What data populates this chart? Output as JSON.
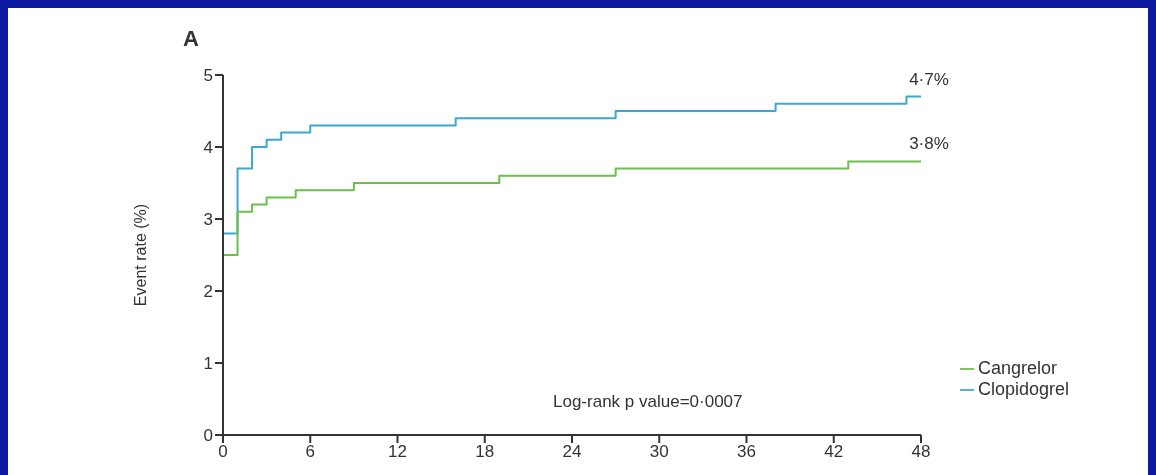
{
  "chart_data": {
    "type": "step",
    "title": "A",
    "ylabel": "Event rate (%)",
    "series": [
      {
        "name": "Clopidogrel",
        "color": "#3aa8d0",
        "x": [
          0,
          0,
          1,
          2,
          3,
          4,
          6,
          16,
          27,
          38,
          47,
          48
        ],
        "values": [
          0,
          2.8,
          3.7,
          4.0,
          4.1,
          4.2,
          4.3,
          4.4,
          4.5,
          4.6,
          4.7,
          4.7
        ]
      },
      {
        "name": "Cangrelor",
        "color": "#6cbf4a",
        "x": [
          0,
          1,
          2,
          3,
          5,
          9,
          19,
          27,
          43,
          48
        ],
        "values": [
          2.5,
          3.1,
          3.2,
          3.3,
          3.4,
          3.5,
          3.6,
          3.7,
          3.8,
          3.8
        ]
      }
    ],
    "xlim": [
      0,
      48
    ],
    "xticks": [
      0,
      6,
      12,
      18,
      24,
      30,
      36,
      42,
      48
    ],
    "ylim": [
      0,
      5
    ],
    "yticks": [
      0,
      1,
      2,
      3,
      4,
      5
    ],
    "grid": false,
    "legend": "bottom right",
    "marker": "none",
    "line_style": "solid",
    "annotations": [
      {
        "text": "4·7%",
        "x": 48,
        "y": 4.7
      },
      {
        "text": "3·8%",
        "x": 48,
        "y": 3.8
      },
      "Log-rank p value=0·0007"
    ]
  }
}
